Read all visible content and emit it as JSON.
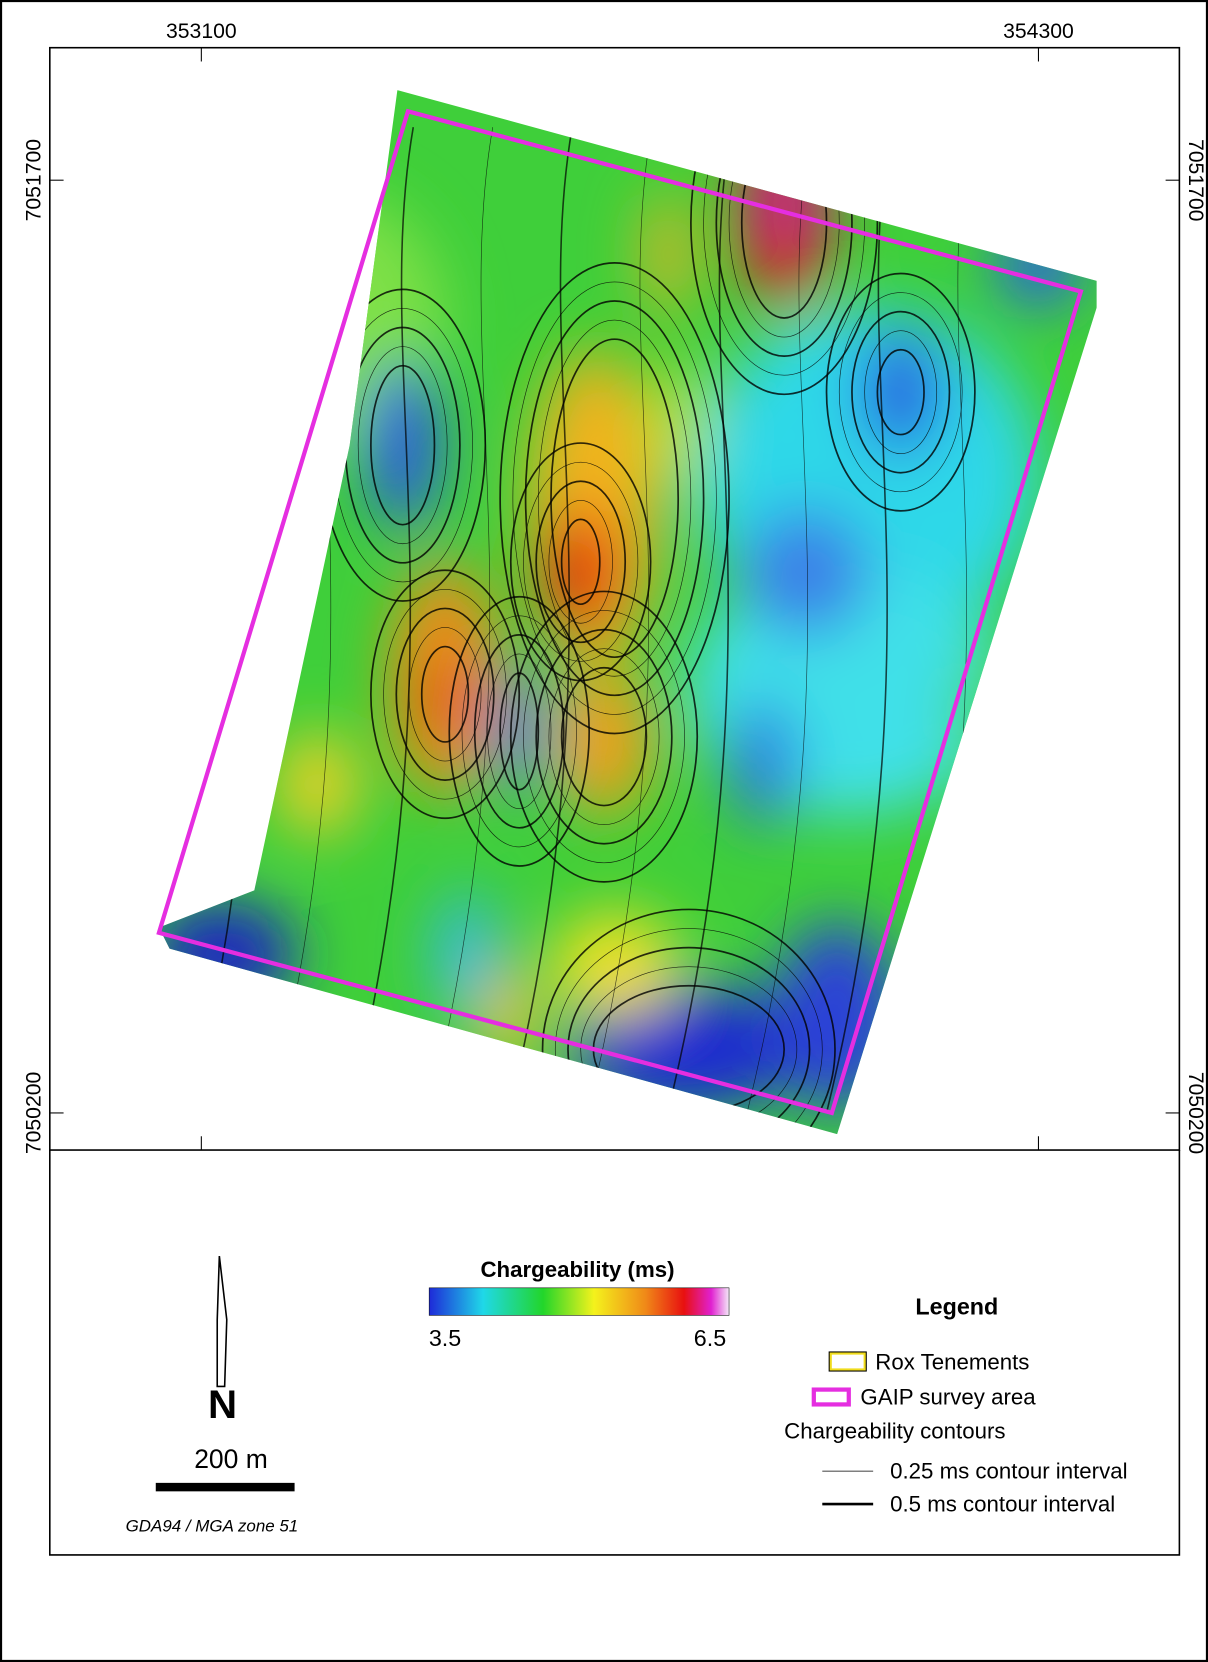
{
  "map": {
    "x_labels": [
      "353100",
      "354300"
    ],
    "y_labels_left": [
      "7051700",
      "7050200"
    ],
    "y_labels_right": [
      "7051700",
      "7050200"
    ]
  },
  "colorbar": {
    "title": "Chargeability (ms)",
    "min_label": "3.5",
    "max_label": "6.5"
  },
  "north_arrow": "N",
  "scale_bar": "200 m",
  "projection": "GDA94 / MGA zone 51",
  "legend": {
    "title": "Legend",
    "items": [
      "Rox Tenements",
      "GAIP survey area"
    ],
    "contours_title": "Chargeability contours",
    "contours": [
      "0.25 ms contour interval",
      "0.5 ms contour interval"
    ]
  }
}
